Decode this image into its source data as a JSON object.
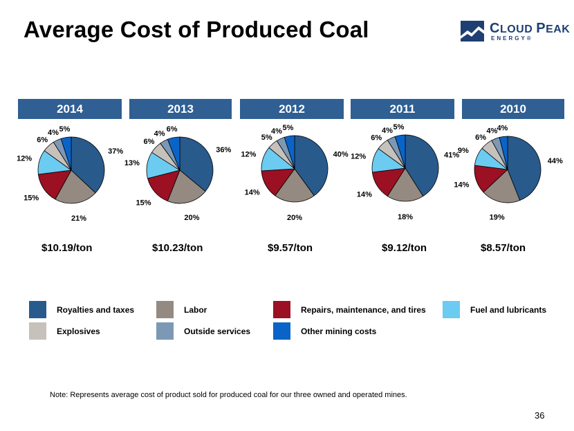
{
  "title": "Average Cost of Produced Coal",
  "logo": {
    "brand_first": "C",
    "brand_rest": "LOUD ",
    "brand_second": "P",
    "brand_rest2": "EAK",
    "sub": "ENERGY®"
  },
  "note": "Note:  Represents average cost of product sold for produced coal for our three owned and operated mines.",
  "page_number": "36",
  "legend": [
    {
      "label": "Royalties and taxes",
      "color": "#285a8c"
    },
    {
      "label": "Labor",
      "color": "#948a81"
    },
    {
      "label": "Repairs, maintenance, and tires",
      "color": "#9b1022"
    },
    {
      "label": "Fuel and lubricants",
      "color": "#6ccbf0"
    },
    {
      "label": "Explosives",
      "color": "#c7c1bc"
    },
    {
      "label": "Outside services",
      "color": "#7c98b5"
    },
    {
      "label": "Other mining costs",
      "color": "#0a64c8"
    }
  ],
  "chart_data": [
    {
      "type": "pie",
      "title": "2014",
      "cost_label": "$10.19/ton",
      "categories": [
        "Royalties and taxes",
        "Labor",
        "Repairs, maintenance, and tires",
        "Fuel and lubricants",
        "Explosives",
        "Outside services",
        "Other mining costs"
      ],
      "values": [
        37,
        21,
        15,
        12,
        6,
        4,
        5
      ],
      "labels": [
        "37%",
        "21%",
        "15%",
        "12%",
        "6%",
        "4%",
        "5%"
      ]
    },
    {
      "type": "pie",
      "title": "2013",
      "cost_label": "$10.23/ton",
      "categories": [
        "Royalties and taxes",
        "Labor",
        "Repairs, maintenance, and tires",
        "Fuel and lubricants",
        "Explosives",
        "Outside services",
        "Other mining costs"
      ],
      "values": [
        36,
        20,
        15,
        13,
        6,
        4,
        6
      ],
      "labels": [
        "36%",
        "20%",
        "15%",
        "13%",
        "6%",
        "4%",
        "6%"
      ]
    },
    {
      "type": "pie",
      "title": "2012",
      "cost_label": "$9.57/ton",
      "categories": [
        "Royalties and taxes",
        "Labor",
        "Repairs, maintenance, and tires",
        "Fuel and lubricants",
        "Explosives",
        "Outside services",
        "Other mining costs"
      ],
      "values": [
        40,
        20,
        14,
        12,
        5,
        4,
        5
      ],
      "labels": [
        "40%",
        "20%",
        "14%",
        "12%",
        "5%",
        "4%",
        "5%"
      ]
    },
    {
      "type": "pie",
      "title": "2011",
      "cost_label": "$9.12/ton",
      "categories": [
        "Royalties and taxes",
        "Labor",
        "Repairs, maintenance, and tires",
        "Fuel and lubricants",
        "Explosives",
        "Outside services",
        "Other mining costs"
      ],
      "values": [
        41,
        18,
        14,
        12,
        6,
        4,
        5
      ],
      "labels": [
        "41%",
        "18%",
        "14%",
        "12%",
        "6%",
        "4%",
        "5%"
      ]
    },
    {
      "type": "pie",
      "title": "2010",
      "cost_label": "$8.57/ton",
      "categories": [
        "Royalties and taxes",
        "Labor",
        "Repairs, maintenance, and tires",
        "Fuel and lubricants",
        "Explosives",
        "Outside services",
        "Other mining costs"
      ],
      "values": [
        44,
        19,
        14,
        9,
        6,
        4,
        4
      ],
      "labels": [
        "44%",
        "19%",
        "14%",
        "9%",
        "6%",
        "4%",
        "4%"
      ]
    }
  ]
}
